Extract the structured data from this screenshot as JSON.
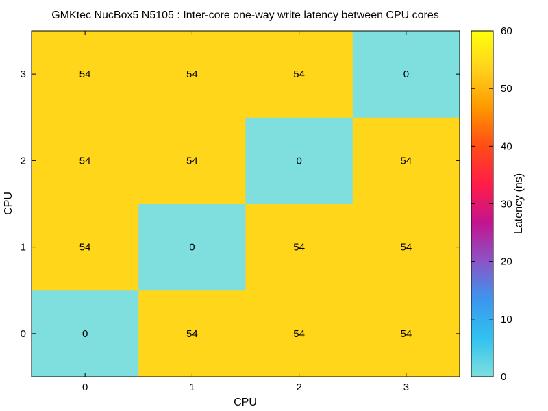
{
  "chart_data": {
    "type": "heatmap",
    "title": "GMKtec NucBox5 N5105 : Inter-core one-way write latency between CPU cores",
    "xlabel": "CPU",
    "ylabel": "CPU",
    "x_categories": [
      "0",
      "1",
      "2",
      "3"
    ],
    "y_categories": [
      "0",
      "1",
      "2",
      "3"
    ],
    "values": [
      [
        0,
        54,
        54,
        54
      ],
      [
        54,
        0,
        54,
        54
      ],
      [
        54,
        54,
        0,
        54
      ],
      [
        54,
        54,
        54,
        0
      ]
    ],
    "colorbar": {
      "label": "Latency (ns)",
      "range": [
        0,
        60
      ],
      "ticks": [
        0,
        10,
        20,
        30,
        40,
        50,
        60
      ],
      "stops": [
        "#7fdfdf",
        "#31c2ef",
        "#3b97ee",
        "#8a55c7",
        "#c3148f",
        "#ff1c49",
        "#ff4c16",
        "#ff9800",
        "#ffd21c",
        "#ffff0a"
      ]
    },
    "grid": false
  }
}
